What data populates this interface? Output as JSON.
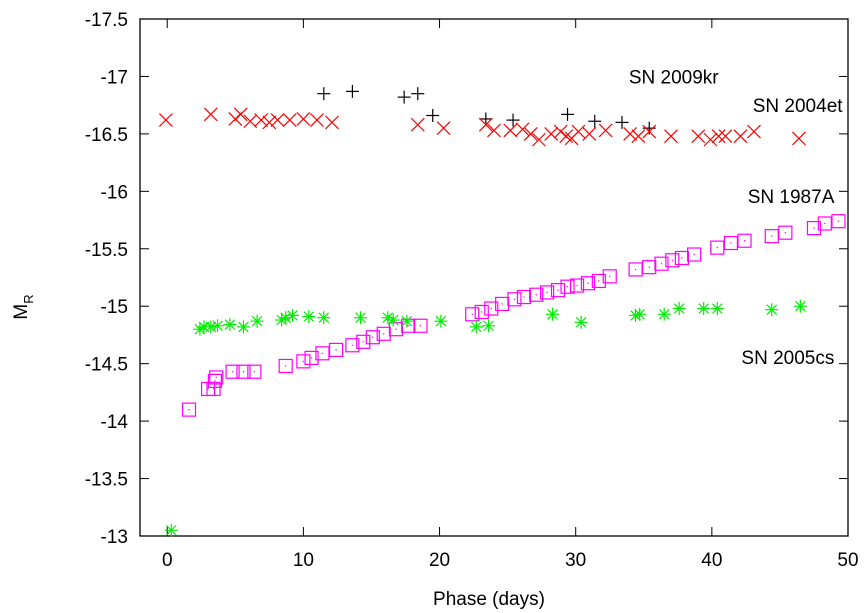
{
  "chart_data": {
    "type": "scatter",
    "title": "",
    "xlabel": "Phase (days)",
    "ylabel_main": "M",
    "ylabel_sub": "R",
    "xlim": [
      -2,
      50
    ],
    "ylim": [
      -13,
      -17.5
    ],
    "y_inverted": true,
    "x_ticks": [
      0,
      10,
      20,
      30,
      40,
      50
    ],
    "x_tick_labels": [
      "0",
      "10",
      "20",
      "30",
      "40",
      "50"
    ],
    "y_ticks": [
      -13,
      -13.5,
      -14,
      -14.5,
      -15,
      -15.5,
      -16,
      -16.5,
      -17,
      -17.5
    ],
    "y_tick_labels": [
      "-13",
      "-13.5",
      "-14",
      "-14.5",
      "-15",
      "-15.5",
      "-16",
      "-16.5",
      "-17",
      "-17.5"
    ],
    "grid": false,
    "series": [
      {
        "name": "SN 2009kr",
        "marker": "plus",
        "color": "#000000",
        "label_x": 40.5,
        "label_y": -17.0,
        "points": [
          [
            11.5,
            -16.85
          ],
          [
            13.6,
            -16.87
          ],
          [
            17.4,
            -16.82
          ],
          [
            18.4,
            -16.85
          ],
          [
            19.5,
            -16.66
          ],
          [
            23.4,
            -16.63
          ],
          [
            25.4,
            -16.62
          ],
          [
            29.4,
            -16.67
          ],
          [
            31.4,
            -16.61
          ],
          [
            33.4,
            -16.6
          ],
          [
            35.4,
            -16.55
          ]
        ]
      },
      {
        "name": "SN 2004et",
        "marker": "x",
        "color": "#ff0000",
        "label_x": 49.6,
        "label_y": -16.75,
        "points": [
          [
            -0.1,
            -16.62
          ],
          [
            3.2,
            -16.67
          ],
          [
            5.0,
            -16.63
          ],
          [
            5.4,
            -16.67
          ],
          [
            6.1,
            -16.61
          ],
          [
            6.9,
            -16.62
          ],
          [
            7.5,
            -16.6
          ],
          [
            8.1,
            -16.62
          ],
          [
            9.0,
            -16.62
          ],
          [
            10.0,
            -16.63
          ],
          [
            11.0,
            -16.62
          ],
          [
            12.1,
            -16.6
          ],
          [
            18.4,
            -16.58
          ],
          [
            20.3,
            -16.55
          ],
          [
            23.4,
            -16.58
          ],
          [
            24.0,
            -16.53
          ],
          [
            25.2,
            -16.53
          ],
          [
            26.1,
            -16.54
          ],
          [
            26.7,
            -16.5
          ],
          [
            27.3,
            -16.45
          ],
          [
            28.2,
            -16.5
          ],
          [
            28.9,
            -16.52
          ],
          [
            29.3,
            -16.48
          ],
          [
            29.7,
            -16.46
          ],
          [
            30.2,
            -16.52
          ],
          [
            31.0,
            -16.5
          ],
          [
            32.2,
            -16.53
          ],
          [
            34.0,
            -16.5
          ],
          [
            34.6,
            -16.48
          ],
          [
            35.4,
            -16.52
          ],
          [
            37.0,
            -16.48
          ],
          [
            39.0,
            -16.48
          ],
          [
            39.9,
            -16.45
          ],
          [
            40.5,
            -16.48
          ],
          [
            41.0,
            -16.48
          ],
          [
            42.1,
            -16.48
          ],
          [
            43.1,
            -16.52
          ],
          [
            46.4,
            -16.46
          ]
        ]
      },
      {
        "name": "SN 1987A",
        "marker": "square",
        "color": "#ff00ff",
        "label_x": 49.0,
        "label_y": -15.96,
        "points": [
          [
            1.6,
            -14.1
          ],
          [
            3.0,
            -14.28
          ],
          [
            3.4,
            -14.28
          ],
          [
            3.5,
            -14.35
          ],
          [
            3.6,
            -14.38
          ],
          [
            4.8,
            -14.43
          ],
          [
            5.6,
            -14.43
          ],
          [
            6.4,
            -14.43
          ],
          [
            8.7,
            -14.48
          ],
          [
            10.0,
            -14.52
          ],
          [
            10.6,
            -14.55
          ],
          [
            11.4,
            -14.59
          ],
          [
            12.4,
            -14.62
          ],
          [
            13.6,
            -14.66
          ],
          [
            14.4,
            -14.69
          ],
          [
            15.1,
            -14.73
          ],
          [
            15.9,
            -14.76
          ],
          [
            16.8,
            -14.8
          ],
          [
            17.7,
            -14.83
          ],
          [
            18.6,
            -14.83
          ],
          [
            22.4,
            -14.93
          ],
          [
            23.1,
            -14.95
          ],
          [
            23.8,
            -14.98
          ],
          [
            24.6,
            -15.02
          ],
          [
            25.5,
            -15.06
          ],
          [
            26.2,
            -15.08
          ],
          [
            27.1,
            -15.1
          ],
          [
            27.9,
            -15.12
          ],
          [
            28.7,
            -15.14
          ],
          [
            29.4,
            -15.17
          ],
          [
            30.1,
            -15.18
          ],
          [
            30.9,
            -15.2
          ],
          [
            31.7,
            -15.22
          ],
          [
            32.5,
            -15.26
          ],
          [
            34.4,
            -15.32
          ],
          [
            35.4,
            -15.34
          ],
          [
            36.3,
            -15.37
          ],
          [
            37.1,
            -15.4
          ],
          [
            37.8,
            -15.42
          ],
          [
            38.7,
            -15.45
          ],
          [
            40.4,
            -15.51
          ],
          [
            41.4,
            -15.55
          ],
          [
            42.4,
            -15.57
          ],
          [
            44.4,
            -15.61
          ],
          [
            45.4,
            -15.64
          ],
          [
            47.5,
            -15.68
          ],
          [
            48.3,
            -15.72
          ],
          [
            49.3,
            -15.74
          ]
        ]
      },
      {
        "name": "SN 2005cs",
        "marker": "asterisk",
        "color": "#00ee00",
        "label_x": 49.0,
        "label_y": -14.56,
        "points": [
          [
            0.3,
            -13.05
          ],
          [
            2.4,
            -14.8
          ],
          [
            2.7,
            -14.82
          ],
          [
            3.2,
            -14.82
          ],
          [
            3.7,
            -14.83
          ],
          [
            4.6,
            -14.84
          ],
          [
            5.6,
            -14.82
          ],
          [
            6.6,
            -14.87
          ],
          [
            8.4,
            -14.88
          ],
          [
            8.7,
            -14.9
          ],
          [
            9.2,
            -14.92
          ],
          [
            10.4,
            -14.91
          ],
          [
            11.5,
            -14.9
          ],
          [
            14.2,
            -14.9
          ],
          [
            16.2,
            -14.9
          ],
          [
            16.6,
            -14.88
          ],
          [
            17.6,
            -14.87
          ],
          [
            20.1,
            -14.87
          ],
          [
            22.7,
            -14.82
          ],
          [
            23.6,
            -14.83
          ],
          [
            28.3,
            -14.93
          ],
          [
            30.4,
            -14.86
          ],
          [
            34.4,
            -14.92
          ],
          [
            34.7,
            -14.93
          ],
          [
            36.5,
            -14.93
          ],
          [
            37.6,
            -14.98
          ],
          [
            39.4,
            -14.98
          ],
          [
            40.4,
            -14.98
          ],
          [
            44.4,
            -14.97
          ],
          [
            46.5,
            -15.0
          ]
        ]
      }
    ]
  }
}
